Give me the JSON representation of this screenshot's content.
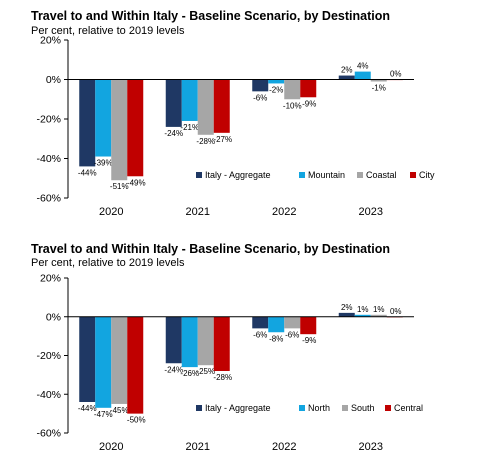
{
  "chart_data": [
    {
      "type": "bar",
      "title": "Travel to and Within Italy - Baseline Scenario, by Destination",
      "subtitle": "Per cent, relative to 2019 levels",
      "categories": [
        "2020",
        "2021",
        "2022",
        "2023"
      ],
      "series": [
        {
          "name": "Italy - Aggregate",
          "color": "#1f3864",
          "values": [
            -44,
            -24,
            -6,
            2
          ],
          "labels": [
            "-44%",
            "-24%",
            "-6%",
            "2%"
          ]
        },
        {
          "name": "Mountain",
          "color": "#12a5e0",
          "values": [
            -39,
            -21,
            -2,
            4
          ],
          "labels": [
            "-39%",
            "-21%",
            "-2%",
            "4%"
          ]
        },
        {
          "name": "Coastal",
          "color": "#a6a6a6",
          "values": [
            -51,
            -28,
            -10,
            -1
          ],
          "labels": [
            "-51%",
            "-28%",
            "-10%",
            "-1%"
          ]
        },
        {
          "name": "City",
          "color": "#c00000",
          "values": [
            -49,
            -27,
            -9,
            0
          ],
          "labels": [
            "-49%",
            "-27%",
            "-9%",
            "0%"
          ]
        }
      ],
      "yticks": [
        "20%",
        "0%",
        "-20%",
        "-40%",
        "-60%"
      ],
      "ylim": [
        -60,
        20
      ],
      "grid": false,
      "legend": "bottom-right"
    },
    {
      "type": "bar",
      "title": "Travel to and Within Italy - Baseline Scenario, by Destination",
      "subtitle": "Per cent, relative to 2019 levels",
      "categories": [
        "2020",
        "2021",
        "2022",
        "2023"
      ],
      "series": [
        {
          "name": "Italy - Aggregate",
          "color": "#1f3864",
          "values": [
            -44,
            -24,
            -6,
            2
          ],
          "labels": [
            "-44%",
            "-24%",
            "-6%",
            "2%"
          ]
        },
        {
          "name": "North",
          "color": "#12a5e0",
          "values": [
            -47,
            -26,
            -8,
            1
          ],
          "labels": [
            "-47%",
            "-26%",
            "-8%",
            "1%"
          ]
        },
        {
          "name": "South",
          "color": "#a6a6a6",
          "values": [
            -45,
            -25,
            -6,
            1
          ],
          "labels": [
            "-45%",
            "-25%",
            "-6%",
            "1%"
          ]
        },
        {
          "name": "Central",
          "color": "#c00000",
          "values": [
            -50,
            -28,
            -9,
            0
          ],
          "labels": [
            "-50%",
            "-28%",
            "-9%",
            "0%"
          ]
        }
      ],
      "yticks": [
        "20%",
        "0%",
        "-20%",
        "-40%",
        "-60%"
      ],
      "ylim": [
        -60,
        20
      ],
      "grid": false,
      "legend": "bottom-right"
    }
  ]
}
